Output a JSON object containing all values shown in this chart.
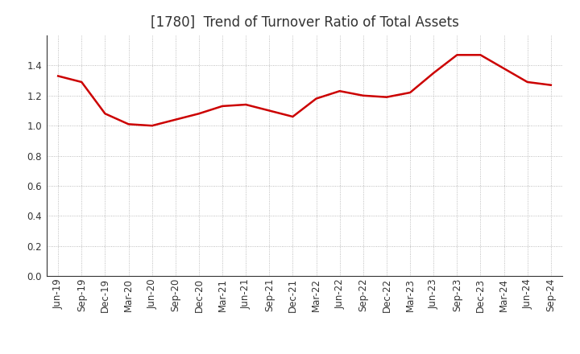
{
  "title": "[1780]  Trend of Turnover Ratio of Total Assets",
  "x_labels": [
    "Jun-19",
    "Sep-19",
    "Dec-19",
    "Mar-20",
    "Jun-20",
    "Sep-20",
    "Dec-20",
    "Mar-21",
    "Jun-21",
    "Sep-21",
    "Dec-21",
    "Mar-22",
    "Jun-22",
    "Sep-22",
    "Dec-22",
    "Mar-23",
    "Jun-23",
    "Sep-23",
    "Dec-23",
    "Mar-24",
    "Jun-24",
    "Sep-24"
  ],
  "y_values": [
    1.33,
    1.29,
    1.08,
    1.01,
    1.0,
    1.04,
    1.08,
    1.13,
    1.14,
    1.1,
    1.06,
    1.18,
    1.23,
    1.2,
    1.19,
    1.22,
    1.35,
    1.47,
    1.47,
    1.38,
    1.29,
    1.27
  ],
  "line_color": "#CC0000",
  "line_width": 1.8,
  "ylim": [
    0.0,
    1.6
  ],
  "yticks": [
    0.0,
    0.2,
    0.4,
    0.6,
    0.8,
    1.0,
    1.2,
    1.4
  ],
  "ytick_labels": [
    "0.0",
    "0.2",
    "0.4",
    "0.6",
    "0.8",
    "1.0",
    "1.2",
    "1.4"
  ],
  "background_color": "#ffffff",
  "plot_bg_color": "#ffffff",
  "grid_color": "#aaaaaa",
  "title_fontsize": 12,
  "tick_fontsize": 8.5,
  "title_color": "#333333"
}
